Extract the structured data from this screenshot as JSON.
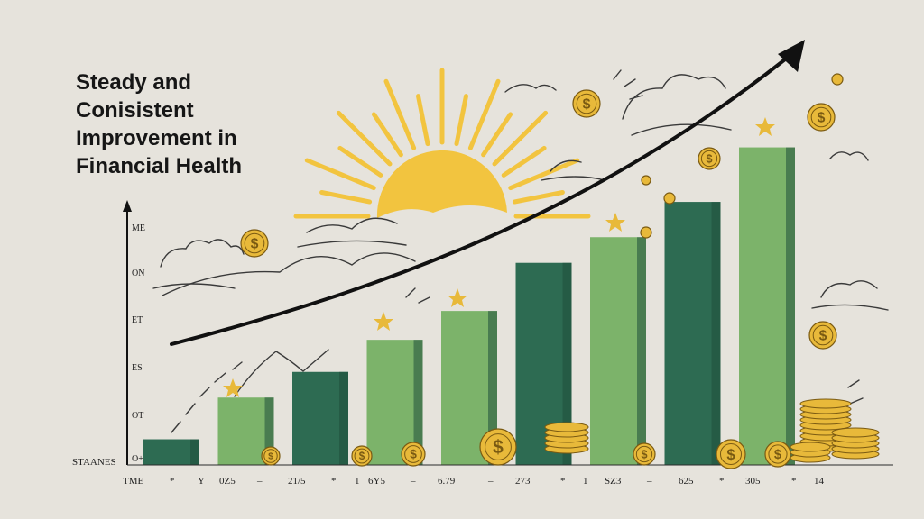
{
  "title_lines": [
    "Steady and",
    "Conisistent",
    "Improvement in",
    "Financial Health"
  ],
  "y_axis_labels": [
    "ME",
    "ON",
    "ET",
    "ES",
    "OT",
    "O+"
  ],
  "y_corner_label": "STAANES",
  "x_axis_labels": [
    "TME",
    "*",
    "Y",
    "0Z5",
    "–",
    "21/5",
    "*",
    "1",
    "6Y5",
    "–",
    "6.79",
    "–",
    "273",
    "*",
    "1",
    "SZ3",
    "–",
    "625",
    "*",
    "305",
    "*",
    "14"
  ],
  "colors": {
    "background": "#e6e3dc",
    "bar_dark": "#2d6b52",
    "bar_light": "#7cb36a",
    "coin": "#e8b93a",
    "sun": "#f2c43f",
    "arrow": "#111111"
  },
  "chart_data": {
    "type": "bar",
    "title": "Steady and Conisistent Improvement in Financial Health",
    "xlabel": "",
    "ylabel": "",
    "ylim": [
      0,
      100
    ],
    "grid": false,
    "trend_arrow": "rising",
    "values": [
      8,
      21,
      29,
      39,
      48,
      63,
      71,
      82,
      99
    ],
    "categories": [
      "",
      "",
      "",
      "",
      "",
      "",
      "",
      "",
      ""
    ],
    "bar_styles": [
      "dark",
      "light",
      "dark",
      "light",
      "light",
      "dark",
      "light",
      "dark",
      "light"
    ]
  }
}
